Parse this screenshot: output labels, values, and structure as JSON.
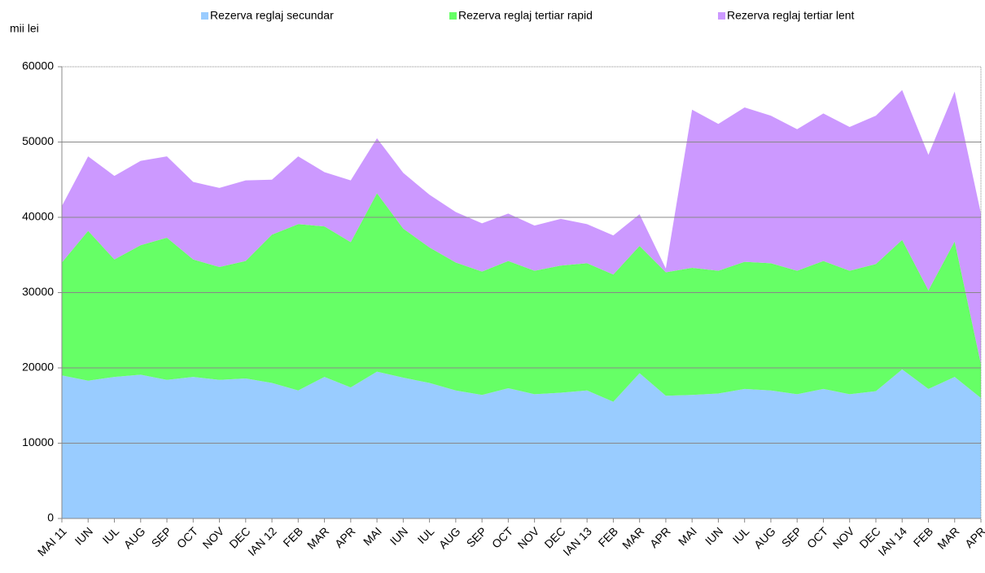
{
  "chart_data": {
    "type": "stacked-area",
    "y_label": "mii lei",
    "categories": [
      "MAI 11",
      "IUN",
      "IUL",
      "AUG",
      "SEP",
      "OCT",
      "NOV",
      "DEC",
      "IAN 12",
      "FEB",
      "MAR",
      "APR",
      "MAI",
      "IUN",
      "IUL",
      "AUG",
      "SEP",
      "OCT",
      "NOV",
      "DEC",
      "IAN 13",
      "FEB",
      "MAR",
      "APR",
      "MAI",
      "IUN",
      "IUL",
      "AUG",
      "SEP",
      "OCT",
      "NOV",
      "DEC",
      "IAN 14",
      "FEB",
      "MAR",
      "APR"
    ],
    "series": [
      {
        "name": "Rezerva reglaj secundar",
        "color": "#99ccff",
        "values": [
          19000,
          18300,
          18800,
          19100,
          18400,
          18800,
          18400,
          18600,
          18000,
          17000,
          18800,
          17400,
          19500,
          18700,
          18000,
          17000,
          16400,
          17300,
          16500,
          16700,
          17000,
          15500,
          19300,
          16300,
          16400,
          16600,
          17200,
          17000,
          16500,
          17200,
          16500,
          16900,
          19800,
          17200,
          18800,
          16000
        ]
      },
      {
        "name": "Rezerva reglaj tertiar rapid",
        "color": "#66ff66",
        "values": [
          15000,
          19900,
          15600,
          17200,
          18900,
          15600,
          15000,
          15600,
          19700,
          22100,
          20000,
          19300,
          23700,
          19800,
          18000,
          17000,
          16400,
          16900,
          16400,
          16900,
          16900,
          16900,
          16900,
          16400,
          16900,
          16300,
          16900,
          16900,
          16400,
          17000,
          16400,
          16900,
          17200,
          13100,
          18000,
          4500
        ]
      },
      {
        "name": "Rezerva reglaj tertiar lent",
        "color": "#cc99ff",
        "values": [
          7500,
          9900,
          11100,
          11200,
          10800,
          10300,
          10500,
          10700,
          7300,
          9000,
          7200,
          8200,
          7300,
          7400,
          7000,
          6700,
          6400,
          6300,
          6000,
          6200,
          5200,
          5200,
          4200,
          500,
          21000,
          19500,
          20500,
          19600,
          18800,
          19600,
          19100,
          19700,
          19900,
          18000,
          19900,
          20000
        ]
      }
    ],
    "ylim": [
      0,
      60000
    ],
    "yticks": [
      0,
      10000,
      20000,
      30000,
      40000,
      50000,
      60000
    ],
    "grid": true,
    "legend": "top"
  }
}
